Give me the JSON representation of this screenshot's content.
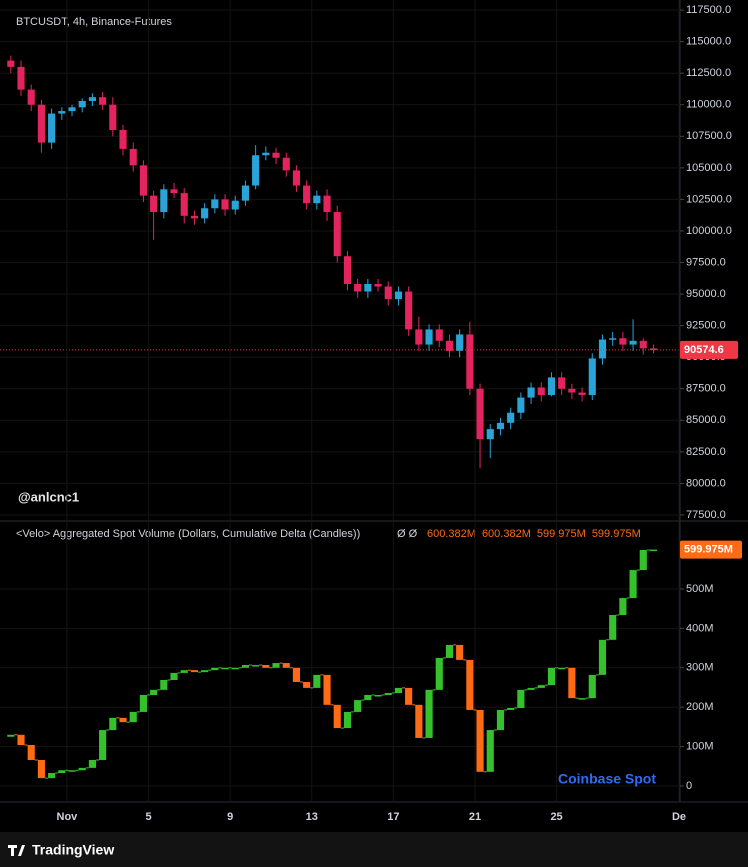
{
  "chart_data": [
    {
      "type": "candlestick",
      "title": "BTCUSDT, 4h, Binance-Futures",
      "watermark": "@anlcnc1",
      "x": [
        -2.75,
        -2.25,
        -1.75,
        -1.25,
        -0.75,
        -0.25,
        0.25,
        0.75,
        1.25,
        1.75,
        2.25,
        2.75,
        3.25,
        3.75,
        4.25,
        4.75,
        5.25,
        5.75,
        6.25,
        6.75,
        7.25,
        7.75,
        8.25,
        8.75,
        9.25,
        9.75,
        10.25,
        10.75,
        11.25,
        11.75,
        12.25,
        12.75,
        13.25,
        13.75,
        14.25,
        14.75,
        15.25,
        15.75,
        16.25,
        16.75,
        17.25,
        17.75,
        18.25,
        18.75,
        19.25,
        19.75,
        20.25,
        20.75,
        21.25,
        21.75,
        22.25,
        22.75,
        23.25,
        23.75,
        24.25,
        24.75,
        25.25,
        25.75,
        26.25,
        26.75,
        27.25,
        27.75,
        28.25,
        28.75
      ],
      "open": [
        113500,
        113000,
        111200,
        110000,
        107000,
        109300,
        109500,
        109800,
        110300,
        110600,
        110000,
        108000,
        106500,
        105200,
        102800,
        101500,
        103300,
        103000,
        101200,
        101000,
        101800,
        102500,
        101700,
        102400,
        103600,
        106000,
        106200,
        105800,
        104800,
        103600,
        102200,
        102800,
        101500,
        98000,
        95800,
        95200,
        95800,
        95600,
        94600,
        95200,
        92200,
        91000,
        92200,
        91300,
        90500,
        91800,
        87500,
        83500,
        84300,
        84800,
        85600,
        86800,
        87600,
        87000,
        88400,
        87500,
        87200,
        87000,
        89900,
        91400,
        91500,
        91000,
        91300,
        90700
      ],
      "high": [
        113900,
        113500,
        111600,
        110400,
        109700,
        109800,
        110000,
        110500,
        110900,
        111000,
        110600,
        108400,
        107000,
        105600,
        103200,
        103700,
        103800,
        103400,
        101600,
        102200,
        102900,
        102900,
        102800,
        104000,
        106800,
        106700,
        106600,
        106200,
        105200,
        104000,
        103200,
        103300,
        102000,
        98400,
        96200,
        96200,
        96200,
        96000,
        95600,
        95600,
        93200,
        92600,
        92600,
        91800,
        92200,
        92800,
        87900,
        84700,
        85200,
        86000,
        87200,
        88000,
        88000,
        88800,
        88800,
        87900,
        87600,
        90300,
        91800,
        92000,
        92000,
        93000,
        91500,
        91000
      ],
      "low": [
        112500,
        110700,
        109500,
        106200,
        106500,
        108800,
        109100,
        109400,
        109900,
        109600,
        107500,
        106000,
        104700,
        102300,
        99300,
        101000,
        102600,
        100600,
        100500,
        100600,
        101400,
        101200,
        101300,
        102000,
        103300,
        105600,
        105300,
        104300,
        103100,
        101700,
        101700,
        100800,
        97500,
        95300,
        94700,
        94700,
        95200,
        94100,
        94100,
        91700,
        90500,
        90500,
        90800,
        90000,
        90000,
        87000,
        81200,
        82000,
        83800,
        84300,
        85100,
        86300,
        86500,
        86900,
        87000,
        86700,
        86500,
        86600,
        89400,
        90900,
        90500,
        90500,
        90200,
        90300
      ],
      "close": [
        113000,
        111200,
        110000,
        107000,
        109300,
        109500,
        109800,
        110300,
        110600,
        110000,
        108000,
        106500,
        105200,
        102800,
        101500,
        103300,
        103000,
        101200,
        101000,
        101800,
        102500,
        101700,
        102400,
        103600,
        106000,
        106200,
        105800,
        104800,
        103600,
        102200,
        102800,
        101500,
        98000,
        95800,
        95200,
        95800,
        95600,
        94600,
        95200,
        92200,
        91000,
        92200,
        91300,
        90500,
        91800,
        87500,
        83500,
        84300,
        84800,
        85600,
        86800,
        87600,
        87000,
        88400,
        87500,
        87200,
        87000,
        89900,
        91400,
        91500,
        91000,
        91300,
        90700,
        90574.6
      ],
      "up_color": "#2aa3d8",
      "down_color": "#e3245f",
      "price_line_color": "#f23645",
      "xlim": [
        -3.28,
        30.05
      ],
      "ylim": [
        77100,
        118300
      ],
      "yticks": [
        {
          "value": 77500,
          "label": "77500.0"
        },
        {
          "value": 80000,
          "label": "80000.0"
        },
        {
          "value": 82500,
          "label": "82500.0"
        },
        {
          "value": 85000,
          "label": "85000.0"
        },
        {
          "value": 87500,
          "label": "87500.0"
        },
        {
          "value": 90000,
          "label": "90000.0"
        },
        {
          "value": 92500,
          "label": "92500.0"
        },
        {
          "value": 95000,
          "label": "95000.0"
        },
        {
          "value": 97500,
          "label": "97500.0"
        },
        {
          "value": 100000,
          "label": "100000.0"
        },
        {
          "value": 102500,
          "label": "102500.0"
        },
        {
          "value": 105000,
          "label": "105000.0"
        },
        {
          "value": 107500,
          "label": "107500.0"
        },
        {
          "value": 110000,
          "label": "110000.0"
        },
        {
          "value": 112500,
          "label": "112500.0"
        },
        {
          "value": 115000,
          "label": "115000.0"
        },
        {
          "value": 117500,
          "label": "117500.0"
        }
      ],
      "grid": true
    },
    {
      "type": "candlestick",
      "title": "<Velo> Aggregated Spot Volume (Dollars, Cumulative Delta (Candles))",
      "indicator_flags": "Ø  Ø",
      "legend_values": [
        "600.382M",
        "600.382M",
        "599.975M",
        "599.975M"
      ],
      "last_value_label": "599.975M",
      "annotation": "Coinbase Spot",
      "x": [
        -2.75,
        -2.25,
        -1.75,
        -1.25,
        -0.75,
        -0.25,
        0.25,
        0.75,
        1.25,
        1.75,
        2.25,
        2.75,
        3.25,
        3.75,
        4.25,
        4.75,
        5.25,
        5.75,
        6.25,
        6.75,
        7.25,
        7.75,
        8.25,
        8.75,
        9.25,
        9.75,
        10.25,
        10.75,
        11.25,
        11.75,
        12.25,
        12.75,
        13.25,
        13.75,
        14.25,
        14.75,
        15.25,
        15.75,
        16.25,
        16.75,
        17.25,
        17.75,
        18.25,
        18.75,
        19.25,
        19.75,
        20.25,
        20.75,
        21.25,
        21.75,
        22.25,
        22.75,
        23.25,
        23.75,
        24.25,
        24.75,
        25.25,
        25.75,
        26.25,
        26.75,
        27.25,
        27.75,
        28.25,
        28.75
      ],
      "open": [
        125,
        130,
        104,
        66,
        20,
        33,
        40,
        40,
        46,
        66,
        142,
        173,
        162,
        188,
        231,
        244,
        269,
        287,
        294,
        289,
        294,
        300,
        300,
        300,
        307,
        307,
        300,
        312,
        300,
        264,
        249,
        282,
        206,
        147,
        188,
        218,
        231,
        231,
        236,
        249,
        206,
        122,
        244,
        325,
        358,
        320,
        193,
        36,
        142,
        193,
        198,
        244,
        249,
        256,
        300,
        300,
        223,
        223,
        282,
        371,
        434,
        477,
        548,
        599
      ],
      "close": [
        130,
        104,
        66,
        20,
        33,
        40,
        40,
        46,
        66,
        142,
        173,
        162,
        188,
        231,
        244,
        269,
        287,
        294,
        289,
        294,
        300,
        300,
        300,
        307,
        307,
        300,
        312,
        300,
        264,
        249,
        282,
        206,
        147,
        188,
        218,
        231,
        231,
        236,
        249,
        206,
        122,
        244,
        325,
        358,
        320,
        193,
        36,
        142,
        193,
        198,
        244,
        249,
        256,
        300,
        300,
        223,
        223,
        282,
        371,
        434,
        477,
        548,
        599,
        599.975
      ],
      "up_color": "#35c12b",
      "down_color": "#ff6a14",
      "annotation_color": "#2f6cf6",
      "xlim": [
        -3.28,
        30.05
      ],
      "ylim": [
        -40.6,
        670
      ],
      "yticks": [
        0,
        {
          "value": 100,
          "label": "100M"
        },
        {
          "value": 200,
          "label": "200M"
        },
        {
          "value": 300,
          "label": "300M"
        },
        {
          "value": 400,
          "label": "400M"
        },
        {
          "value": 500,
          "label": "500M"
        }
      ],
      "xticks": [
        {
          "value": 0,
          "label": "Nov"
        },
        {
          "value": 4,
          "label": "5"
        },
        {
          "value": 8,
          "label": "9"
        },
        {
          "value": 12,
          "label": "13"
        },
        {
          "value": 16,
          "label": "17"
        },
        {
          "value": 20,
          "label": "21"
        },
        {
          "value": 24,
          "label": "25"
        },
        {
          "value": 30,
          "label": "De"
        }
      ],
      "grid": true
    }
  ],
  "footer": "TradingView"
}
